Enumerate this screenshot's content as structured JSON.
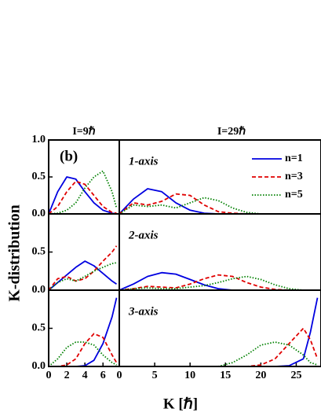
{
  "figure": {
    "column_titles": [
      "I=9ℏ",
      "I=29ℏ"
    ],
    "y_label": "K-distribution",
    "x_label": "K [ℏ]"
  },
  "chart_data": [
    {
      "type": "line",
      "title": "(b)",
      "xlim": [
        0,
        7.8
      ],
      "ylim": [
        0,
        1
      ],
      "yticks": [
        {
          "value": 0,
          "label": "0.0"
        },
        {
          "value": 0.5,
          "label": "0.5"
        },
        {
          "value": 1,
          "label": "1.0"
        }
      ],
      "x": [
        0,
        1,
        2,
        3,
        4,
        5,
        6,
        7,
        7.5
      ],
      "series": [
        {
          "name": "n=1",
          "color": "#0000e0",
          "style": "solid",
          "values": [
            0,
            0.3,
            0.5,
            0.47,
            0.3,
            0.15,
            0.05,
            0.01,
            0
          ]
        },
        {
          "name": "n=3",
          "color": "#e00000",
          "style": "dashed",
          "values": [
            0,
            0.1,
            0.3,
            0.44,
            0.4,
            0.25,
            0.1,
            0.02,
            0.01
          ]
        },
        {
          "name": "n=5",
          "color": "#008000",
          "style": "dotted",
          "values": [
            0,
            0.01,
            0.05,
            0.15,
            0.35,
            0.5,
            0.58,
            0.3,
            0.08
          ]
        }
      ]
    },
    {
      "type": "line",
      "title": "1-axis",
      "legend": "upper right",
      "xlim": [
        0,
        28.5
      ],
      "ylim": [
        0,
        1
      ],
      "x": [
        0,
        2,
        4,
        6,
        8,
        10,
        12,
        14,
        16,
        18,
        20,
        22,
        24,
        26,
        27,
        28
      ],
      "series": [
        {
          "name": "n=1",
          "color": "#0000e0",
          "style": "solid",
          "values": [
            0,
            0.2,
            0.34,
            0.3,
            0.15,
            0.05,
            0.01,
            0,
            0,
            0,
            0,
            0,
            0,
            0,
            0,
            0
          ]
        },
        {
          "name": "n=3",
          "color": "#e00000",
          "style": "dashed",
          "values": [
            0,
            0.15,
            0.12,
            0.17,
            0.27,
            0.25,
            0.12,
            0.03,
            0.01,
            0,
            0,
            0,
            0,
            0,
            0,
            0
          ]
        },
        {
          "name": "n=5",
          "color": "#008000",
          "style": "dotted",
          "values": [
            0,
            0.12,
            0.1,
            0.12,
            0.08,
            0.15,
            0.22,
            0.18,
            0.08,
            0.02,
            0,
            0,
            0,
            0,
            0,
            0
          ]
        }
      ]
    },
    {
      "type": "line",
      "xlim": [
        0,
        7.8
      ],
      "ylim": [
        0,
        1
      ],
      "yticks": [
        {
          "value": 0,
          "label": "0.0"
        },
        {
          "value": 0.5,
          "label": "0.5"
        }
      ],
      "x": [
        0,
        1,
        2,
        3,
        4,
        5,
        6,
        7,
        7.5
      ],
      "series": [
        {
          "name": "n=1",
          "color": "#0000e0",
          "style": "solid",
          "values": [
            0,
            0.1,
            0.2,
            0.3,
            0.38,
            0.32,
            0.22,
            0.12,
            0.08
          ]
        },
        {
          "name": "n=3",
          "color": "#e00000",
          "style": "dashed",
          "values": [
            0,
            0.15,
            0.18,
            0.12,
            0.15,
            0.25,
            0.38,
            0.5,
            0.58
          ]
        },
        {
          "name": "n=5",
          "color": "#008000",
          "style": "dotted",
          "values": [
            0,
            0.1,
            0.15,
            0.12,
            0.18,
            0.25,
            0.3,
            0.35,
            0.36
          ]
        }
      ]
    },
    {
      "type": "line",
      "title": "2-axis",
      "xlim": [
        0,
        28.5
      ],
      "ylim": [
        0,
        1
      ],
      "x": [
        0,
        2,
        4,
        6,
        8,
        10,
        12,
        14,
        16,
        18,
        20,
        22,
        24,
        26,
        27,
        28
      ],
      "series": [
        {
          "name": "n=1",
          "color": "#0000e0",
          "style": "solid",
          "values": [
            0,
            0.08,
            0.18,
            0.23,
            0.21,
            0.14,
            0.07,
            0.02,
            0,
            0,
            0,
            0,
            0,
            0,
            0,
            0
          ]
        },
        {
          "name": "n=3",
          "color": "#e00000",
          "style": "dashed",
          "values": [
            0,
            0.02,
            0.05,
            0.04,
            0.03,
            0.08,
            0.15,
            0.2,
            0.18,
            0.1,
            0.04,
            0.01,
            0,
            0,
            0,
            0
          ]
        },
        {
          "name": "n=5",
          "color": "#008000",
          "style": "dotted",
          "values": [
            0,
            0.02,
            0.03,
            0.02,
            0.02,
            0.04,
            0.06,
            0.1,
            0.15,
            0.18,
            0.14,
            0.07,
            0.02,
            0,
            0,
            0
          ]
        }
      ]
    },
    {
      "type": "line",
      "xlim": [
        0,
        7.8
      ],
      "ylim": [
        0,
        1
      ],
      "yticks": [
        {
          "value": 0,
          "label": "0.0"
        },
        {
          "value": 0.5,
          "label": "0.5"
        }
      ],
      "xticks": [
        0,
        2,
        4,
        6
      ],
      "x": [
        0,
        1,
        2,
        3,
        4,
        5,
        6,
        7,
        7.5
      ],
      "series": [
        {
          "name": "n=1",
          "color": "#0000e0",
          "style": "solid",
          "values": [
            0,
            0,
            0,
            0,
            0.01,
            0.08,
            0.3,
            0.65,
            0.9
          ]
        },
        {
          "name": "n=3",
          "color": "#e00000",
          "style": "dashed",
          "values": [
            0,
            0,
            0.02,
            0.1,
            0.3,
            0.43,
            0.38,
            0.15,
            0.05
          ]
        },
        {
          "name": "n=5",
          "color": "#008000",
          "style": "dotted",
          "values": [
            0,
            0.1,
            0.25,
            0.32,
            0.32,
            0.28,
            0.15,
            0.05,
            0.02
          ]
        }
      ]
    },
    {
      "type": "line",
      "title": "3-axis",
      "xlim": [
        0,
        28.5
      ],
      "ylim": [
        0,
        1
      ],
      "xticks": [
        0,
        5,
        10,
        15,
        20,
        25
      ],
      "x": [
        0,
        2,
        4,
        6,
        8,
        10,
        12,
        14,
        16,
        18,
        20,
        22,
        24,
        26,
        27,
        28
      ],
      "series": [
        {
          "name": "n=1",
          "color": "#0000e0",
          "style": "solid",
          "values": [
            0,
            0,
            0,
            0,
            0,
            0,
            0,
            0,
            0,
            0,
            0,
            0,
            0.01,
            0.1,
            0.45,
            0.9
          ]
        },
        {
          "name": "n=3",
          "color": "#e00000",
          "style": "dashed",
          "values": [
            0,
            0,
            0,
            0,
            0,
            0,
            0,
            0,
            0,
            0,
            0.02,
            0.1,
            0.3,
            0.5,
            0.35,
            0.1
          ]
        },
        {
          "name": "n=5",
          "color": "#008000",
          "style": "dotted",
          "values": [
            0,
            0,
            0,
            0,
            0,
            0,
            0,
            0,
            0.05,
            0.15,
            0.28,
            0.32,
            0.28,
            0.15,
            0.05,
            0.02
          ]
        }
      ]
    }
  ]
}
